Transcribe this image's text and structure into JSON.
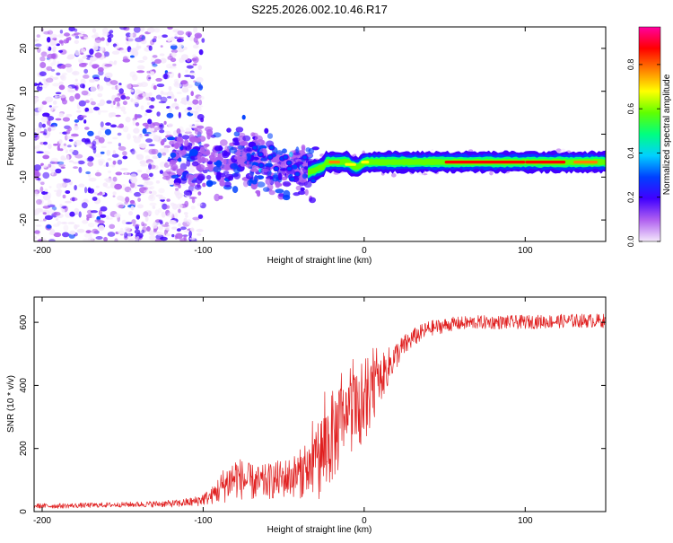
{
  "figure_title": "S225.2026.002.10.46.R17",
  "chart_data": [
    {
      "type": "heatmap",
      "title": "S225.2026.002.10.46.R17",
      "xlabel": "Height of straight line (km)",
      "ylabel": "Frequency (Hz)",
      "xlim": [
        -205,
        150
      ],
      "ylim": [
        -25,
        25
      ],
      "x_ticks": [
        -200,
        -100,
        0,
        100
      ],
      "x_tick_labels": [
        "-200",
        "-100",
        "0",
        "100"
      ],
      "y_ticks": [
        -20,
        -10,
        0,
        10,
        20
      ],
      "y_tick_labels": [
        "-20",
        "-10",
        "0",
        "10",
        "20"
      ],
      "colorbar": {
        "label": "Normalized spectral amplitude",
        "range": [
          0,
          0.97
        ],
        "ticks": [
          0.0,
          0.2,
          0.4,
          0.6,
          0.8
        ],
        "tick_labels": [
          "0.0",
          "0.2",
          "0.4",
          "0.6",
          "0.8"
        ],
        "colors": [
          "#f4e8fb",
          "#b060f0",
          "#4000ff",
          "#0040ff",
          "#00d0ff",
          "#00ff80",
          "#60ff00",
          "#ffff00",
          "#ff8000",
          "#ff0000",
          "#ff00a0"
        ]
      },
      "features": {
        "noise_region_x": [
          -205,
          -110
        ],
        "scatter_region_x": [
          -120,
          -30
        ],
        "trace_start_x": -35,
        "trace_end_x": 150,
        "trace_freq_hz": -6.5,
        "trace_peak_amplitude": 0.9
      }
    },
    {
      "type": "line",
      "xlabel": "Height of straight line (km)",
      "ylabel": "SNR (10 * v/v)",
      "xlim": [
        -205,
        150
      ],
      "ylim": [
        0,
        680
      ],
      "x_ticks": [
        -200,
        -100,
        0,
        100
      ],
      "x_tick_labels": [
        "-200",
        "-100",
        "0",
        "100"
      ],
      "y_ticks": [
        0,
        200,
        400,
        600
      ],
      "y_tick_labels": [
        "0",
        "200",
        "400",
        "600"
      ],
      "color": "#e02020",
      "series": [
        {
          "name": "SNR",
          "x": [
            -205,
            -190,
            -170,
            -150,
            -130,
            -115,
            -105,
            -95,
            -88,
            -80,
            -72,
            -65,
            -55,
            -45,
            -35,
            -28,
            -22,
            -15,
            -8,
            0,
            8,
            15,
            22,
            30,
            40,
            55,
            70,
            90,
            110,
            130,
            150
          ],
          "y": [
            18,
            18,
            20,
            22,
            24,
            26,
            32,
            48,
            80,
            110,
            95,
            90,
            100,
            110,
            130,
            170,
            220,
            270,
            310,
            330,
            400,
            460,
            510,
            550,
            580,
            595,
            600,
            600,
            602,
            605,
            605
          ],
          "noise_amplitude": [
            8,
            8,
            8,
            8,
            10,
            12,
            16,
            25,
            55,
            70,
            60,
            55,
            60,
            65,
            90,
            130,
            150,
            140,
            120,
            110,
            80,
            60,
            40,
            30,
            25,
            22,
            22,
            22,
            22,
            22,
            22
          ]
        }
      ]
    }
  ]
}
